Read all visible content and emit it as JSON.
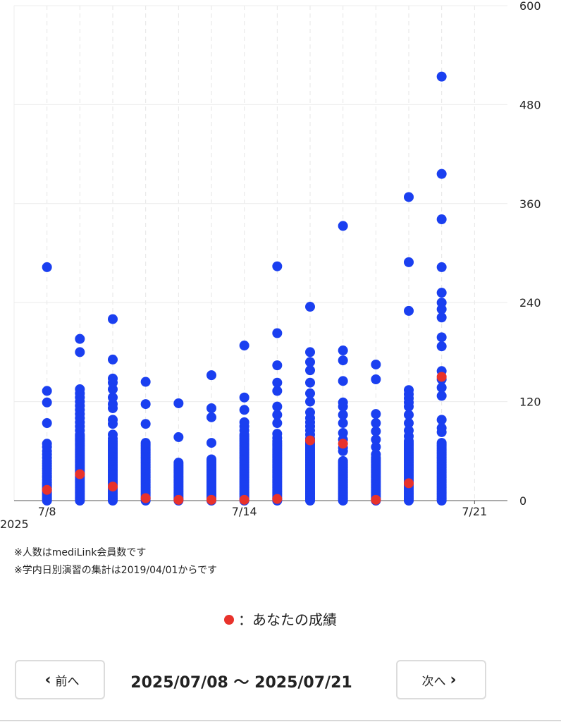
{
  "chart_data": {
    "type": "scatter",
    "title": "",
    "xlabel": "",
    "ylabel": "",
    "y_axis_position": "right",
    "ylim": [
      0,
      600
    ],
    "yticks": [
      0,
      120,
      240,
      360,
      480,
      600
    ],
    "xlim": [
      "2025-07-07",
      "2025-07-22"
    ],
    "xticks": [
      {
        "date": "2025-07-08",
        "label": "7/8"
      },
      {
        "date": "2025-07-14",
        "label": "7/14"
      },
      {
        "date": "2025-07-21",
        "label": "7/21"
      }
    ],
    "year_label": "2025",
    "grid": "horizontal solid at y ticks, vertical dashed per day",
    "series": [
      {
        "color": "#1a3ff0",
        "points": [
          {
            "x": "2025-07-08",
            "y": [
              0,
              2,
              4,
              6,
              8,
              10,
              12,
              14,
              16,
              18,
              20,
              22,
              25,
              28,
              30,
              33,
              36,
              39,
              42,
              45,
              48,
              52,
              56,
              60,
              65,
              69,
              94,
              119,
              133,
              283
            ]
          },
          {
            "x": "2025-07-09",
            "y": [
              0,
              2,
              4,
              6,
              8,
              10,
              12,
              14,
              16,
              18,
              20,
              22,
              24,
              26,
              28,
              30,
              32,
              34,
              36,
              38,
              40,
              42,
              44,
              46,
              48,
              50,
              52,
              54,
              56,
              58,
              60,
              62,
              64,
              66,
              68,
              70,
              72,
              74,
              76,
              78,
              80,
              85,
              90,
              95,
              100,
              105,
              110,
              115,
              120,
              125,
              130,
              135,
              180,
              196
            ]
          },
          {
            "x": "2025-07-10",
            "y": [
              0,
              2,
              4,
              6,
              8,
              10,
              12,
              14,
              16,
              18,
              20,
              22,
              24,
              26,
              28,
              30,
              32,
              34,
              36,
              38,
              40,
              42,
              44,
              46,
              48,
              50,
              52,
              54,
              56,
              58,
              60,
              62,
              64,
              66,
              68,
              70,
              72,
              75,
              80,
              93,
              98,
              112,
              117,
              125,
              135,
              143,
              148,
              171,
              220
            ]
          },
          {
            "x": "2025-07-11",
            "y": [
              0,
              2,
              4,
              6,
              8,
              10,
              12,
              14,
              16,
              18,
              20,
              22,
              24,
              26,
              28,
              30,
              32,
              34,
              36,
              38,
              40,
              42,
              44,
              46,
              48,
              50,
              52,
              54,
              56,
              58,
              60,
              62,
              64,
              66,
              68,
              70,
              93,
              117,
              144
            ]
          },
          {
            "x": "2025-07-12",
            "y": [
              0,
              2,
              4,
              6,
              8,
              10,
              12,
              14,
              16,
              18,
              20,
              22,
              24,
              26,
              28,
              30,
              32,
              34,
              36,
              38,
              40,
              42,
              44,
              46,
              77,
              118
            ]
          },
          {
            "x": "2025-07-13",
            "y": [
              0,
              2,
              4,
              6,
              8,
              10,
              12,
              14,
              16,
              18,
              20,
              22,
              24,
              26,
              28,
              30,
              32,
              34,
              36,
              38,
              40,
              42,
              44,
              46,
              48,
              50,
              70,
              101,
              112,
              152
            ]
          },
          {
            "x": "2025-07-14",
            "y": [
              0,
              2,
              4,
              6,
              8,
              10,
              12,
              14,
              16,
              18,
              20,
              22,
              24,
              26,
              28,
              30,
              32,
              34,
              36,
              38,
              40,
              42,
              44,
              46,
              48,
              50,
              52,
              54,
              56,
              58,
              60,
              62,
              64,
              66,
              68,
              70,
              72,
              74,
              76,
              78,
              80,
              85,
              90,
              95,
              110,
              125,
              188
            ]
          },
          {
            "x": "2025-07-15",
            "y": [
              0,
              2,
              4,
              6,
              8,
              10,
              12,
              14,
              16,
              18,
              20,
              22,
              24,
              26,
              28,
              30,
              32,
              34,
              36,
              38,
              40,
              42,
              44,
              46,
              48,
              50,
              52,
              54,
              56,
              58,
              60,
              62,
              64,
              66,
              68,
              70,
              72,
              76,
              81,
              94,
              104,
              114,
              133,
              143,
              164,
              203,
              284
            ]
          },
          {
            "x": "2025-07-16",
            "y": [
              0,
              2,
              4,
              6,
              8,
              10,
              12,
              14,
              16,
              18,
              20,
              22,
              24,
              26,
              28,
              30,
              32,
              34,
              36,
              38,
              40,
              42,
              44,
              46,
              48,
              50,
              52,
              54,
              56,
              58,
              60,
              62,
              64,
              66,
              68,
              70,
              72,
              75,
              80,
              85,
              90,
              95,
              100,
              107,
              120,
              130,
              143,
              158,
              168,
              180,
              235
            ]
          },
          {
            "x": "2025-07-17",
            "y": [
              0,
              2,
              4,
              6,
              8,
              10,
              12,
              14,
              16,
              18,
              20,
              22,
              24,
              26,
              28,
              30,
              32,
              34,
              36,
              38,
              40,
              42,
              44,
              46,
              48,
              60,
              64,
              74,
              82,
              94,
              104,
              114,
              119,
              145,
              170,
              182,
              333
            ]
          },
          {
            "x": "2025-07-18",
            "y": [
              0,
              2,
              4,
              6,
              8,
              10,
              12,
              14,
              16,
              18,
              20,
              22,
              24,
              26,
              28,
              30,
              32,
              34,
              36,
              38,
              40,
              42,
              44,
              46,
              48,
              50,
              52,
              56,
              65,
              74,
              84,
              94,
              105,
              147,
              165
            ]
          },
          {
            "x": "2025-07-19",
            "y": [
              0,
              2,
              4,
              6,
              8,
              10,
              12,
              14,
              16,
              18,
              20,
              22,
              24,
              26,
              28,
              30,
              32,
              34,
              36,
              38,
              40,
              42,
              44,
              46,
              48,
              50,
              52,
              54,
              56,
              58,
              60,
              62,
              64,
              66,
              68,
              70,
              72,
              78,
              85,
              94,
              104,
              114,
              119,
              124,
              129,
              134,
              230,
              289,
              368
            ]
          },
          {
            "x": "2025-07-20",
            "y": [
              0,
              2,
              4,
              6,
              8,
              10,
              12,
              14,
              16,
              18,
              20,
              22,
              24,
              26,
              28,
              30,
              32,
              34,
              36,
              38,
              40,
              42,
              44,
              46,
              48,
              50,
              52,
              54,
              56,
              58,
              60,
              62,
              64,
              66,
              68,
              70,
              83,
              88,
              98,
              127,
              137,
              147,
              157,
              187,
              198,
              222,
              232,
              240,
              252,
              283,
              341,
              396,
              514
            ]
          }
        ]
      },
      {
        "color": "#e8322b",
        "points": [
          {
            "x": "2025-07-08",
            "y": 13
          },
          {
            "x": "2025-07-09",
            "y": 32
          },
          {
            "x": "2025-07-10",
            "y": 17
          },
          {
            "x": "2025-07-11",
            "y": 3
          },
          {
            "x": "2025-07-12",
            "y": 1
          },
          {
            "x": "2025-07-13",
            "y": 1
          },
          {
            "x": "2025-07-14",
            "y": 1
          },
          {
            "x": "2025-07-15",
            "y": 2
          },
          {
            "x": "2025-07-16",
            "y": 73
          },
          {
            "x": "2025-07-17",
            "y": 69
          },
          {
            "x": "2025-07-18",
            "y": 1
          },
          {
            "x": "2025-07-19",
            "y": 21
          },
          {
            "x": "2025-07-20",
            "y": 150
          }
        ]
      }
    ]
  },
  "notes": [
    "※人数はmediLink会員数です",
    "※学内日別演習の集計は2019/04/01からです"
  ],
  "legend": {
    "color": "#e8322b",
    "label": "：あなたの成績"
  },
  "nav": {
    "prev_label": "前へ",
    "next_label": "次へ",
    "range_label": "2025/07/08 〜 2025/07/21"
  }
}
